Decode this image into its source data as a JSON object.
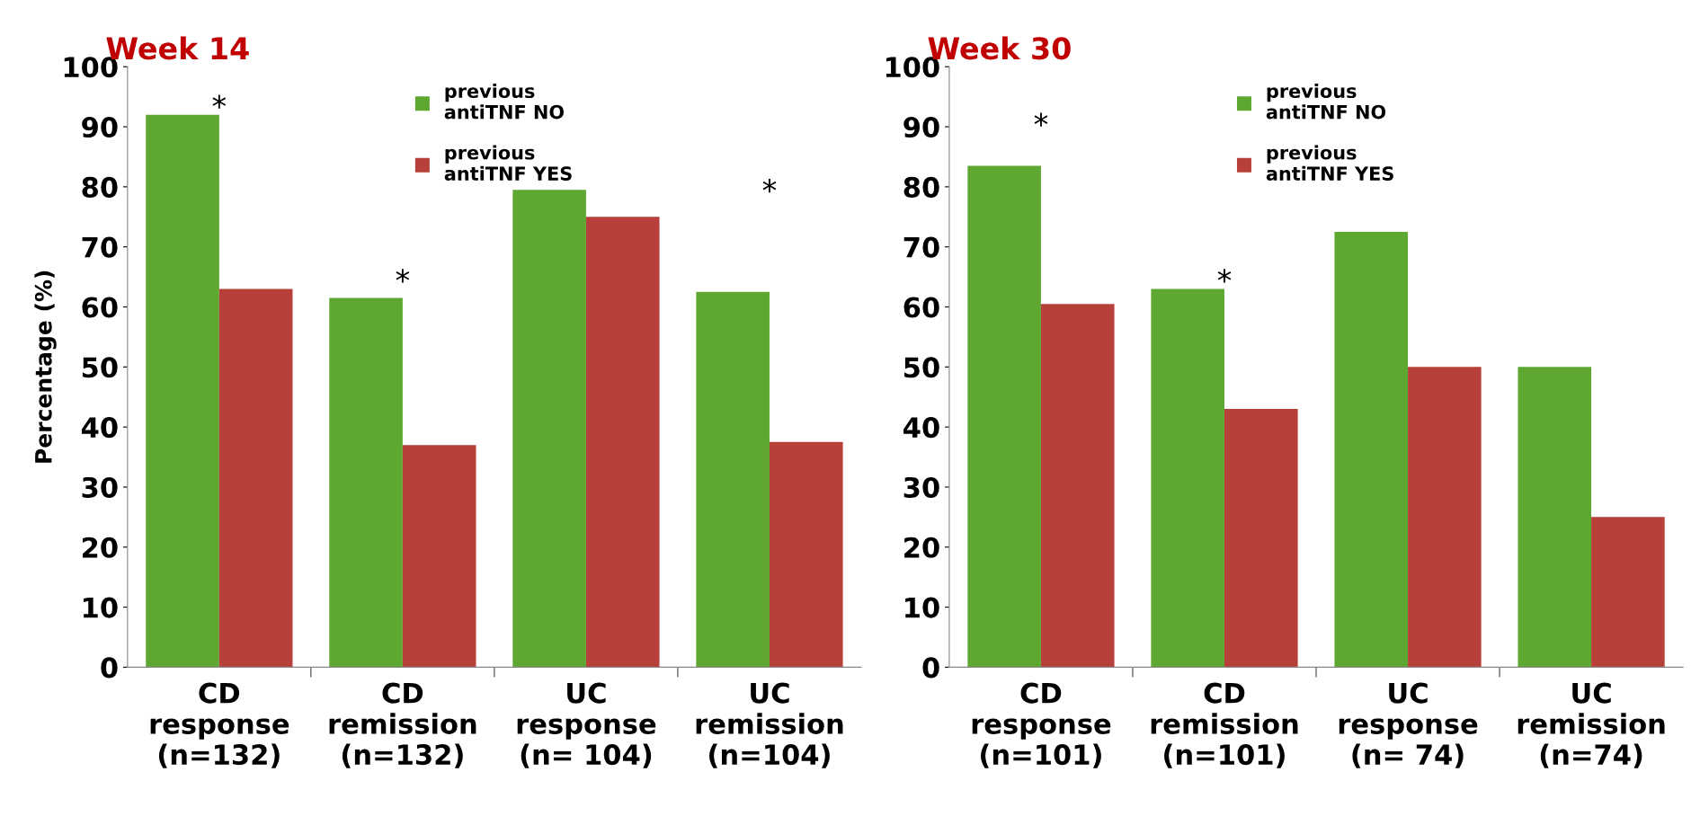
{
  "chart_data": [
    {
      "type": "bar",
      "title": "Week 14",
      "ylabel": "Percentage (%)",
      "categories": [
        "CD\nresponse\n(n=132)",
        "CD\nremission\n(n=132)",
        "UC\nresponse\n(n= 104)",
        "UC\nremission\n(n=104)"
      ],
      "series": [
        {
          "name": "previous\nantiTNF NO",
          "color": "#5ea832",
          "values": [
            92,
            61.5,
            79.5,
            62.5
          ]
        },
        {
          "name": "previous\nantiTNF YES",
          "color": "#b8403a",
          "values": [
            63,
            37,
            75,
            37.5
          ]
        }
      ],
      "ylim": [
        0,
        100
      ],
      "yticks": [
        0,
        10,
        20,
        30,
        40,
        50,
        60,
        70,
        80,
        90,
        100
      ],
      "legend": "top",
      "grid": false,
      "annotations": [
        "*",
        "*",
        "*"
      ]
    },
    {
      "type": "bar",
      "title": "Week 30",
      "categories": [
        "CD\nresponse\n(n=101)",
        "CD\nremission\n(n=101)",
        "UC\nresponse\n(n= 74)",
        "UC\nremission\n(n=74)"
      ],
      "series": [
        {
          "name": "previous\nantiTNF NO",
          "color": "#5ea832",
          "values": [
            83.5,
            63,
            72.5,
            50
          ]
        },
        {
          "name": "previous\nantiTNF YES",
          "color": "#b8403a",
          "values": [
            60.5,
            43,
            50,
            25
          ]
        }
      ],
      "ylim": [
        0,
        100
      ],
      "yticks": [
        0,
        10,
        20,
        30,
        40,
        50,
        60,
        70,
        80,
        90,
        100
      ],
      "legend": "top",
      "grid": false,
      "annotations": [
        "*",
        "*"
      ]
    }
  ]
}
